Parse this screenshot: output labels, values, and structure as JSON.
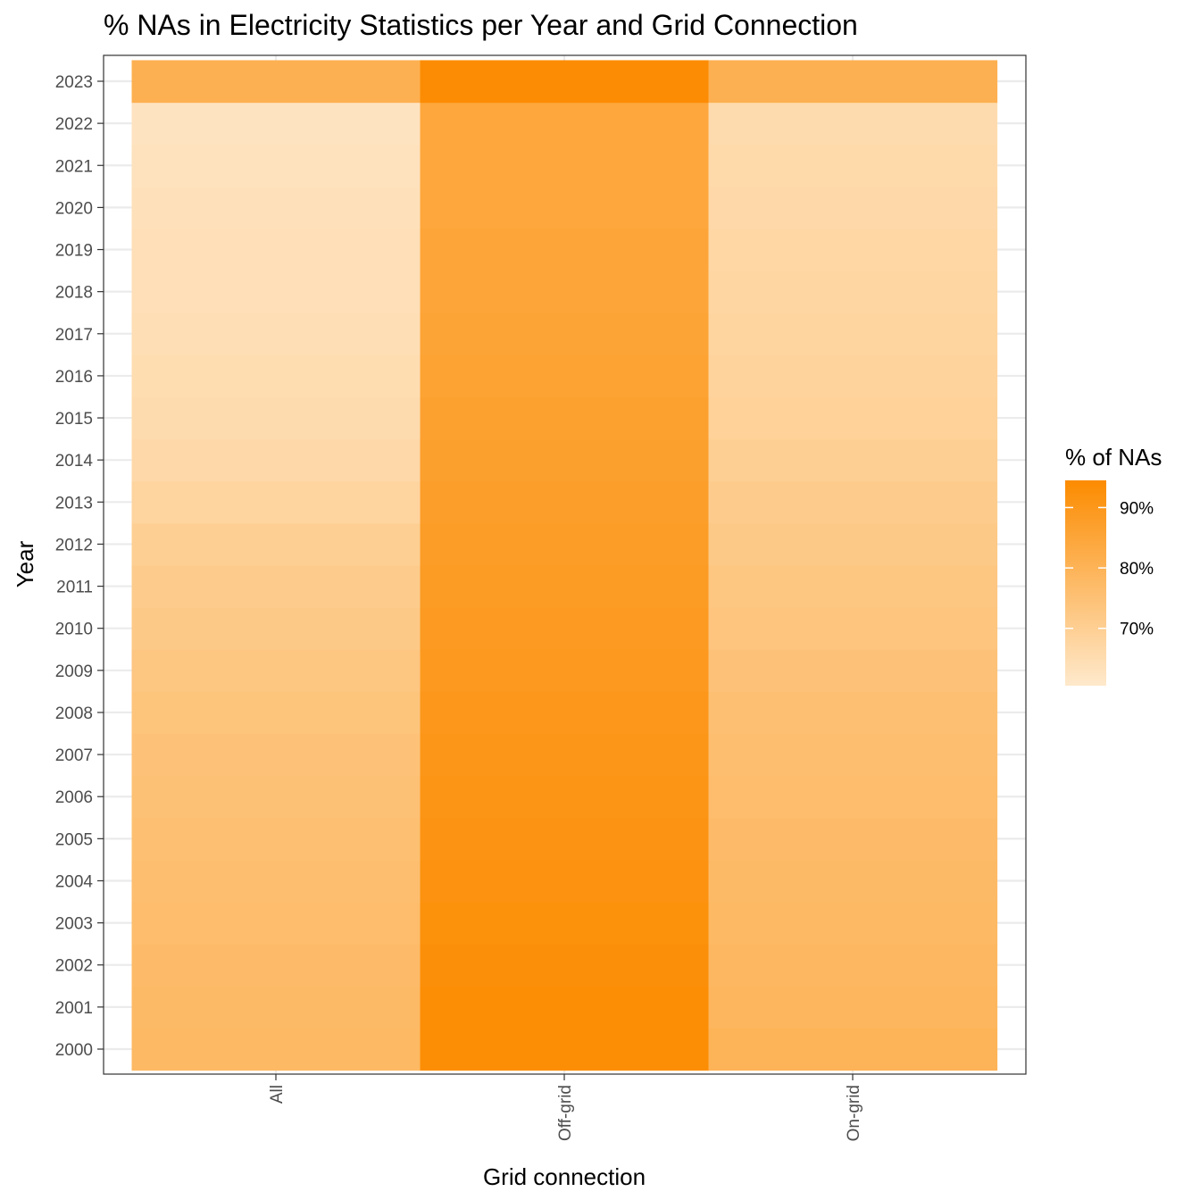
{
  "chart_data": {
    "type": "heatmap",
    "title": "% NAs in Electricity Statistics per Year and Grid Connection",
    "xlabel": "Grid connection",
    "ylabel": "Year",
    "x_categories": [
      "All",
      "Off-grid",
      "On-grid"
    ],
    "y_categories": [
      "2000",
      "2001",
      "2002",
      "2003",
      "2004",
      "2005",
      "2006",
      "2007",
      "2008",
      "2009",
      "2010",
      "2011",
      "2012",
      "2013",
      "2014",
      "2015",
      "2016",
      "2017",
      "2018",
      "2019",
      "2020",
      "2021",
      "2022",
      "2023"
    ],
    "values": {
      "All": [
        78.0,
        77.5,
        77.0,
        76.5,
        76.0,
        75.5,
        75.0,
        74.5,
        74.0,
        73.0,
        72.0,
        71.0,
        70.0,
        68.0,
        66.5,
        65.5,
        65.0,
        64.5,
        64.0,
        64.0,
        63.5,
        63.0,
        62.5,
        81.0
      ],
      "Off-grid": [
        93.5,
        93.5,
        93.0,
        92.5,
        92.0,
        91.5,
        91.0,
        90.5,
        90.0,
        89.5,
        89.0,
        88.5,
        88.0,
        87.5,
        87.0,
        86.5,
        86.0,
        85.5,
        85.0,
        85.0,
        84.5,
        84.5,
        84.5,
        94.0
      ],
      "On-grid": [
        80.0,
        79.0,
        78.5,
        78.0,
        77.5,
        77.0,
        76.5,
        76.0,
        75.5,
        74.5,
        73.5,
        73.0,
        72.0,
        71.0,
        70.0,
        69.0,
        68.5,
        68.0,
        67.5,
        67.0,
        66.5,
        66.0,
        65.5,
        81.0
      ]
    },
    "legend": {
      "title": "% of NAs",
      "placement": "right",
      "breaks": [
        70,
        80,
        90
      ],
      "labels": [
        "70%",
        "80%",
        "90%"
      ],
      "limits": [
        60.5,
        94.5
      ],
      "low_color": "#FEE9CC",
      "high_color": "#FC8B00"
    },
    "grid": true
  }
}
